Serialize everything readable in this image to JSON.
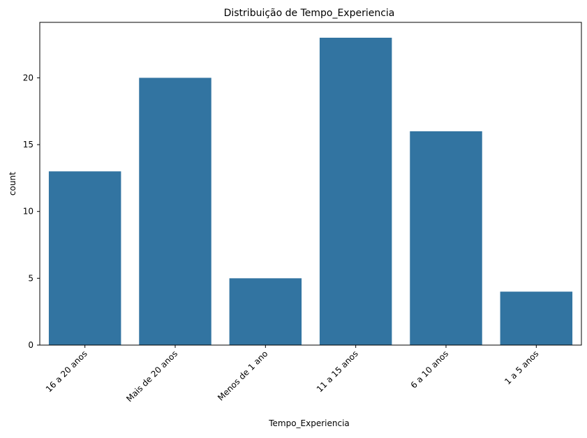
{
  "chart_data": {
    "type": "bar",
    "title": "Distribuição de Tempo_Experiencia",
    "xlabel": "Tempo_Experiencia",
    "ylabel": "count",
    "categories": [
      "16 a 20 anos",
      "Mais de 20 anos",
      "Menos de 1 ano",
      "11 a 15 anos",
      "6 a 10 anos",
      "1 a 5 anos"
    ],
    "values": [
      13,
      20,
      5,
      23,
      16,
      4
    ],
    "ylim": [
      0,
      24.15
    ],
    "yticks": [
      0,
      5,
      10,
      15,
      20
    ],
    "grid": false,
    "bar_color": "#3274a1"
  }
}
